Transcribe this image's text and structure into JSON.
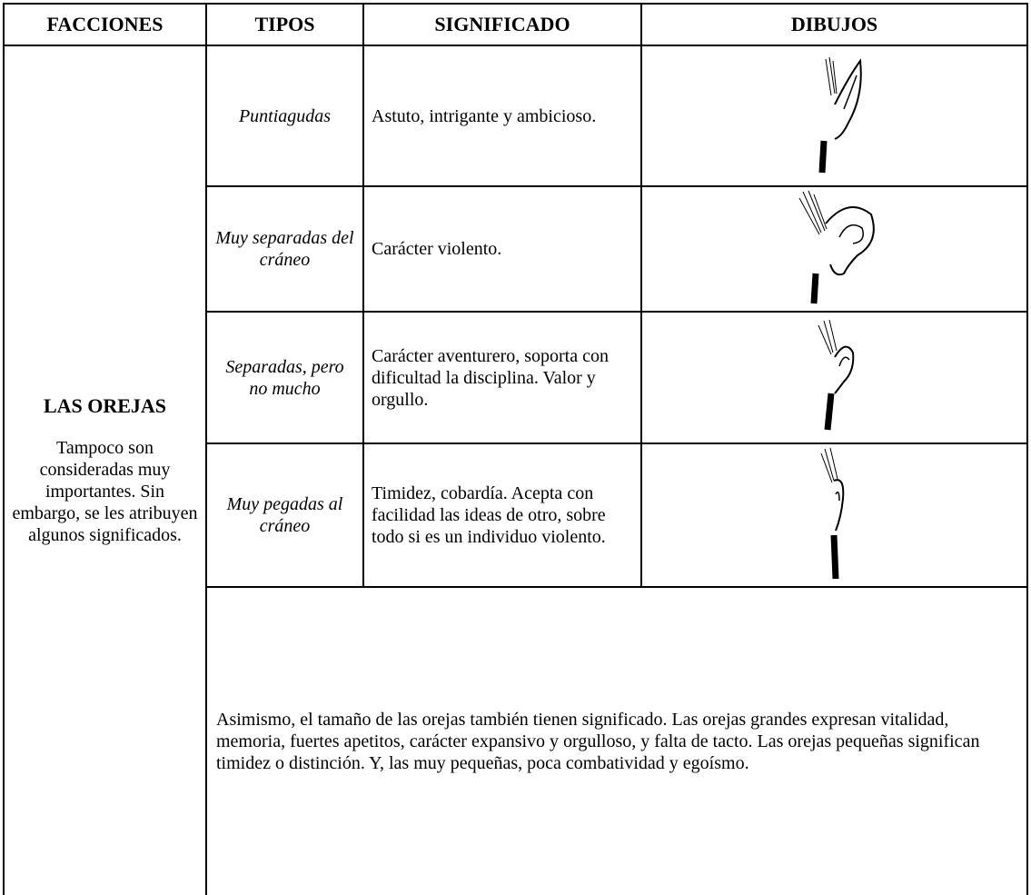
{
  "table": {
    "header": [
      "FACCIONES",
      "TIPOS",
      "SIGNIFICADO",
      "DIBUJOS"
    ],
    "faccion": {
      "title": "LAS OREJAS",
      "description": "Tampoco son consideradas muy importantes. Sin embargo, se les atribuyen algunos significados."
    },
    "rows": [
      [
        "Puntiagudas",
        "Astuto, intrigante y ambicioso."
      ],
      [
        "Muy separadas del cráneo",
        "Carácter violento."
      ],
      [
        "Separadas, pero no mucho",
        "Carácter aventurero, soporta con dificultad la disciplina. Valor y orgullo."
      ],
      [
        "Muy pegadas al cráneo",
        "Timidez, cobardía. Acepta con facilidad las ideas de otro, sobre todo si es un individuo violento."
      ]
    ],
    "note": "Asimismo, el tamaño de las orejas también tienen significado. Las orejas grandes expresan vitalidad, memoria, fuertes apetitos, carácter expansivo y orgulloso, y falta de tacto. Las orejas pequeñas significan timidez o distinción. Y, las muy pequeñas, poca combatividad y egoísmo."
  }
}
